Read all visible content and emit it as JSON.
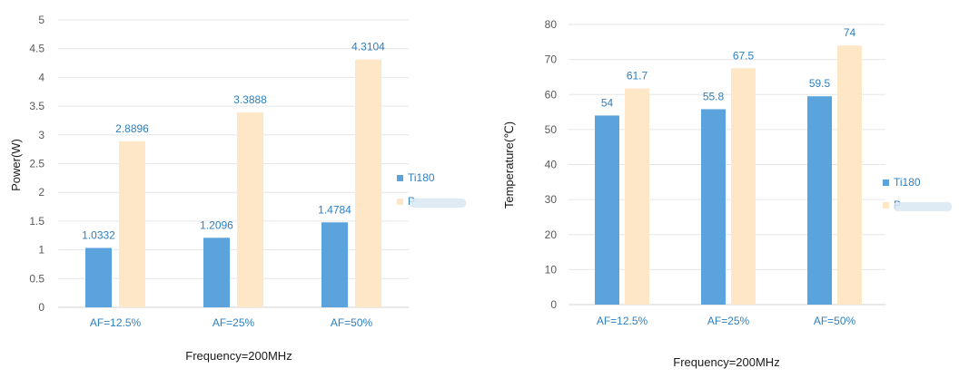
{
  "chart_data": [
    {
      "type": "bar",
      "categories": [
        "AF=12.5%",
        "AF=25%",
        "AF=50%"
      ],
      "series": [
        {
          "name": "Ti180",
          "values": [
            1.0332,
            1.2096,
            1.4784
          ],
          "labels": [
            "1.0332",
            "1.2096",
            "1.4784"
          ],
          "color": "#5ba3dc"
        },
        {
          "name": "P",
          "values": [
            2.8896,
            3.3888,
            4.3104
          ],
          "labels": [
            "2.8896",
            "3.3888",
            "4.3104"
          ],
          "color": "#fde7c6"
        }
      ],
      "xlabel": "Frequency=200MHz",
      "ylabel": "Power(W)",
      "ylim": [
        0,
        5
      ],
      "yticks": [
        "0",
        "0.5",
        "1",
        "1.5",
        "2",
        "2.5",
        "3",
        "3.5",
        "4",
        "4.5",
        "5"
      ],
      "grid": true,
      "legend": "right"
    },
    {
      "type": "bar",
      "categories": [
        "AF=12.5%",
        "AF=25%",
        "AF=50%"
      ],
      "series": [
        {
          "name": "Ti180",
          "values": [
            54,
            55.8,
            59.5
          ],
          "labels": [
            "54",
            "55.8",
            "59.5"
          ],
          "color": "#5ba3dc"
        },
        {
          "name": "P",
          "values": [
            61.7,
            67.5,
            74
          ],
          "labels": [
            "61.7",
            "67.5",
            "74"
          ],
          "color": "#fde7c6"
        }
      ],
      "xlabel": "Frequency=200MHz",
      "ylabel": "Temperature(℃)",
      "ylim": [
        0,
        80
      ],
      "yticks": [
        "0",
        "10",
        "20",
        "30",
        "40",
        "50",
        "60",
        "70",
        "80"
      ],
      "grid": true,
      "legend": "right"
    }
  ]
}
